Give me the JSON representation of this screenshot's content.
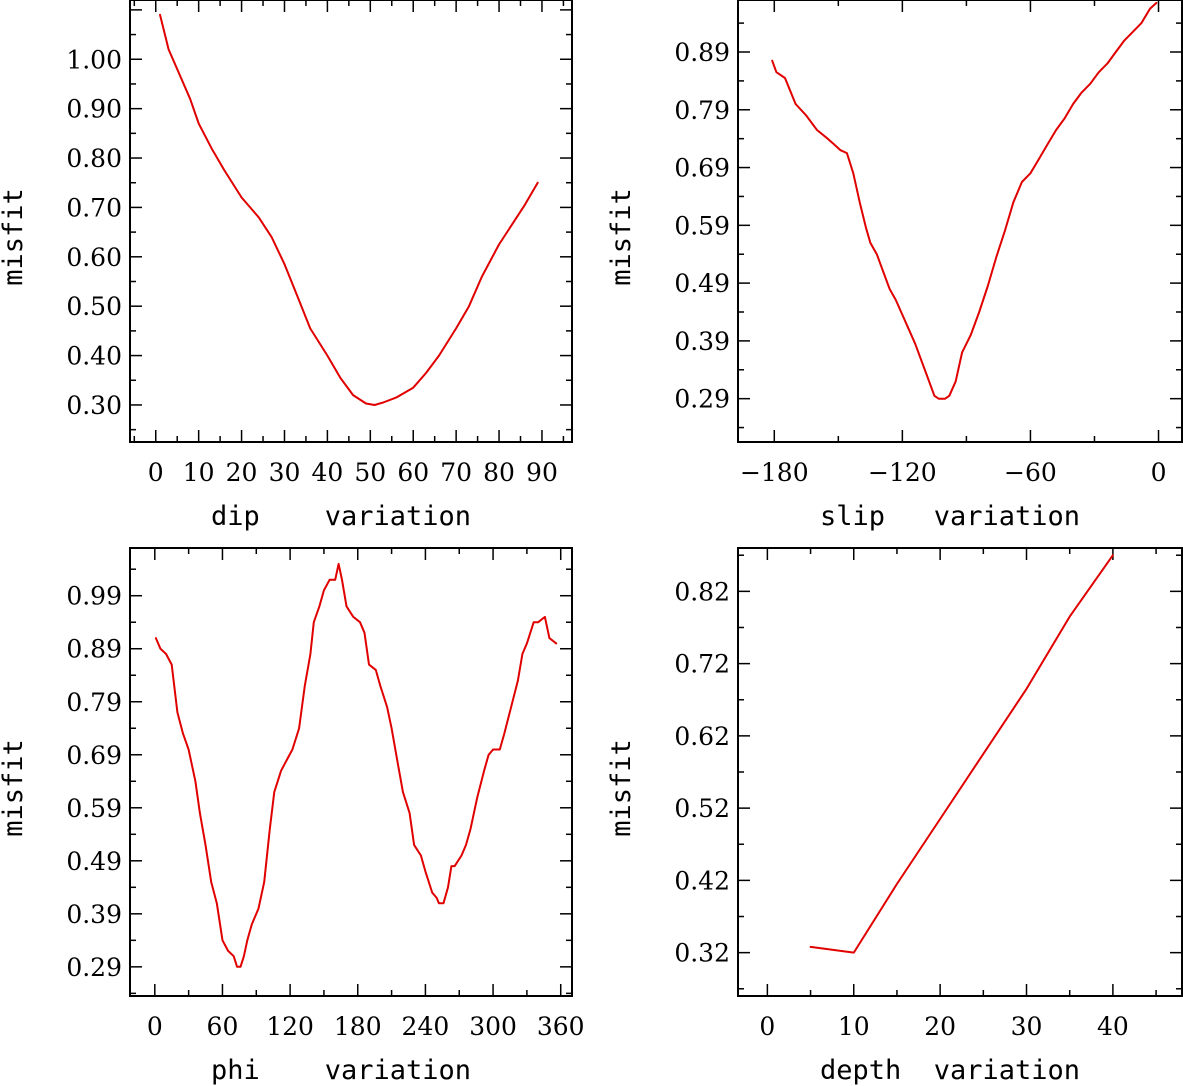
{
  "chart_data": [
    {
      "type": "line",
      "xlabel": "dip    variation",
      "ylabel": "misfit",
      "xlim": [
        -6,
        97
      ],
      "ylim": [
        0.225,
        1.12
      ],
      "xticks": [
        0,
        10,
        20,
        30,
        40,
        50,
        60,
        70,
        80,
        90
      ],
      "xtick_labels": [
        "0",
        "10",
        "20",
        "30",
        "40",
        "50",
        "60",
        "70",
        "80",
        "90"
      ],
      "yticks": [
        0.3,
        0.4,
        0.5,
        0.6,
        0.7,
        0.8,
        0.9,
        1.0
      ],
      "ytick_labels": [
        "0.30",
        "0.40",
        "0.50",
        "0.60",
        "0.70",
        "0.80",
        "0.90",
        "1.00"
      ],
      "series": [
        {
          "name": "misfit",
          "color": "#e00000",
          "x": [
            1,
            3,
            5,
            8,
            10,
            13,
            16,
            20,
            24,
            27,
            30,
            33,
            36,
            40,
            43,
            46,
            49,
            51,
            53,
            56,
            60,
            63,
            66,
            70,
            73,
            76,
            80,
            83,
            86,
            89
          ],
          "y": [
            1.09,
            1.02,
            0.98,
            0.92,
            0.87,
            0.82,
            0.775,
            0.72,
            0.68,
            0.64,
            0.585,
            0.52,
            0.455,
            0.4,
            0.355,
            0.32,
            0.303,
            0.3,
            0.305,
            0.315,
            0.335,
            0.365,
            0.4,
            0.455,
            0.5,
            0.56,
            0.625,
            0.665,
            0.705,
            0.75
          ]
        }
      ]
    },
    {
      "type": "line",
      "xlabel": "slip   variation",
      "ylabel": "misfit",
      "xlim": [
        -197,
        11
      ],
      "ylim": [
        0.215,
        0.98
      ],
      "xticks": [
        -180,
        -120,
        -60,
        0
      ],
      "xtick_labels": [
        "−180",
        "−120",
        "−60",
        "0"
      ],
      "yticks": [
        0.29,
        0.39,
        0.49,
        0.59,
        0.69,
        0.79,
        0.89
      ],
      "ytick_labels": [
        "0.29",
        "0.39",
        "0.49",
        "0.59",
        "0.69",
        "0.79",
        "0.89"
      ],
      "series": [
        {
          "name": "misfit",
          "color": "#e00000",
          "x": [
            -181,
            -179,
            -175,
            -170,
            -165,
            -160,
            -155,
            -152,
            -149,
            -146,
            -143,
            -140,
            -137,
            -135,
            -132,
            -129,
            -126,
            -123,
            -120,
            -117,
            -114,
            -111,
            -108,
            -105,
            -103,
            -100,
            -98,
            -95,
            -92,
            -88,
            -84,
            -80,
            -76,
            -72,
            -68,
            -64,
            -60,
            -56,
            -52,
            -48,
            -44,
            -40,
            -36,
            -32,
            -28,
            -24,
            -20,
            -16,
            -12,
            -8,
            -4,
            -1
          ],
          "y": [
            0.875,
            0.855,
            0.845,
            0.8,
            0.78,
            0.755,
            0.74,
            0.73,
            0.72,
            0.715,
            0.68,
            0.63,
            0.585,
            0.56,
            0.54,
            0.51,
            0.48,
            0.46,
            0.435,
            0.41,
            0.385,
            0.355,
            0.325,
            0.295,
            0.29,
            0.29,
            0.295,
            0.32,
            0.37,
            0.4,
            0.44,
            0.485,
            0.535,
            0.58,
            0.63,
            0.665,
            0.68,
            0.705,
            0.73,
            0.755,
            0.775,
            0.8,
            0.82,
            0.835,
            0.855,
            0.87,
            0.89,
            0.91,
            0.925,
            0.94,
            0.965,
            0.975
          ]
        }
      ]
    },
    {
      "type": "line",
      "xlabel": "phi    variation",
      "ylabel": "misfit",
      "xlim": [
        -22,
        370
      ],
      "ylim": [
        0.235,
        1.08
      ],
      "xticks": [
        0,
        60,
        120,
        180,
        240,
        300,
        360
      ],
      "xtick_labels": [
        "0",
        "60",
        "120",
        "180",
        "240",
        "300",
        "360"
      ],
      "yticks": [
        0.29,
        0.39,
        0.49,
        0.59,
        0.69,
        0.79,
        0.89,
        0.99
      ],
      "ytick_labels": [
        "0.29",
        "0.39",
        "0.49",
        "0.59",
        "0.69",
        "0.79",
        "0.89",
        "0.99"
      ],
      "series": [
        {
          "name": "misfit",
          "color": "#e00000",
          "x": [
            1,
            5,
            10,
            15,
            20,
            25,
            30,
            36,
            40,
            45,
            50,
            55,
            60,
            65,
            70,
            73,
            76,
            79,
            82,
            86,
            92,
            97,
            102,
            106,
            112,
            117,
            122,
            128,
            133,
            138,
            141,
            146,
            150,
            155,
            160,
            163,
            166,
            170,
            176,
            182,
            186,
            190,
            196,
            200,
            206,
            210,
            215,
            220,
            226,
            230,
            236,
            240,
            246,
            250,
            252,
            256,
            260,
            263,
            266,
            272,
            276,
            280,
            286,
            292,
            296,
            300,
            306,
            310,
            316,
            322,
            326,
            330,
            336,
            340,
            346,
            350,
            356
          ],
          "y": [
            0.91,
            0.89,
            0.88,
            0.86,
            0.77,
            0.73,
            0.7,
            0.64,
            0.58,
            0.52,
            0.45,
            0.41,
            0.34,
            0.32,
            0.31,
            0.29,
            0.29,
            0.31,
            0.34,
            0.37,
            0.4,
            0.45,
            0.55,
            0.62,
            0.66,
            0.68,
            0.7,
            0.74,
            0.82,
            0.88,
            0.94,
            0.97,
            1.0,
            1.02,
            1.02,
            1.05,
            1.02,
            0.97,
            0.95,
            0.94,
            0.92,
            0.86,
            0.85,
            0.82,
            0.78,
            0.74,
            0.68,
            0.62,
            0.58,
            0.52,
            0.5,
            0.47,
            0.43,
            0.42,
            0.41,
            0.41,
            0.44,
            0.48,
            0.48,
            0.5,
            0.52,
            0.55,
            0.61,
            0.66,
            0.69,
            0.7,
            0.7,
            0.73,
            0.78,
            0.83,
            0.88,
            0.9,
            0.94,
            0.94,
            0.95,
            0.91,
            0.9
          ]
        }
      ]
    },
    {
      "type": "line",
      "xlabel": "depth  variation",
      "ylabel": "misfit",
      "xlim": [
        -3.4,
        48
      ],
      "ylim": [
        0.26,
        0.88
      ],
      "xticks": [
        0,
        10,
        20,
        30,
        40
      ],
      "xtick_labels": [
        "0",
        "10",
        "20",
        "30",
        "40"
      ],
      "yticks": [
        0.32,
        0.42,
        0.52,
        0.62,
        0.72,
        0.82
      ],
      "ytick_labels": [
        "0.32",
        "0.42",
        "0.52",
        "0.62",
        "0.72",
        "0.82"
      ],
      "series": [
        {
          "name": "misfit",
          "color": "#e00000",
          "x": [
            5,
            10,
            15,
            20,
            25,
            30,
            35,
            40
          ],
          "y": [
            0.328,
            0.32,
            0.415,
            0.505,
            0.595,
            0.685,
            0.785,
            0.87
          ]
        }
      ]
    }
  ]
}
